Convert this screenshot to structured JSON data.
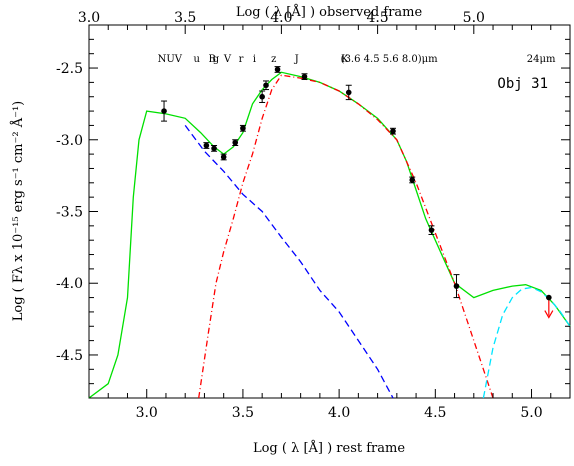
{
  "chart_data": {
    "type": "line",
    "xlabel": "Log ( λ [Å] ) rest frame",
    "x2label": "Log ( λ [Å] ) observed frame",
    "ylabel": "Log ( Fλ x 10⁻¹⁵ erg s⁻¹ cm⁻² Å⁻¹)",
    "xlim": [
      2.7,
      5.2
    ],
    "ylim": [
      -4.8,
      -2.2
    ],
    "x2lim": [
      3.0,
      5.5
    ],
    "x_ticks": [
      "3.0",
      "3.5",
      "4.0",
      "4.5",
      "5.0"
    ],
    "x2_ticks": [
      "3.0",
      "3.5",
      "4.0",
      "4.5",
      "5.0"
    ],
    "y_ticks": [
      "-2.5",
      "-3.0",
      "-3.5",
      "-4.0",
      "-4.5"
    ],
    "annotation": "Obj 31",
    "band_labels": [
      {
        "text": "NUV",
        "x": 3.42
      },
      {
        "text": "u",
        "x": 3.56
      },
      {
        "text": "B",
        "x": 3.64
      },
      {
        "text": "g",
        "x": 3.66
      },
      {
        "text": "V",
        "x": 3.72
      },
      {
        "text": "r",
        "x": 3.79
      },
      {
        "text": "i",
        "x": 3.86
      },
      {
        "text": "z",
        "x": 3.96
      },
      {
        "text": "J",
        "x": 4.08
      },
      {
        "text": "K",
        "x": 4.33
      },
      {
        "text": "(3.6 4.5 5.6  8.0)μm",
        "x": 4.56
      },
      {
        "text": "24μm",
        "x": 5.35
      }
    ],
    "observed_points": {
      "x": [
        3.09,
        3.31,
        3.35,
        3.4,
        3.46,
        3.5,
        3.6,
        3.62,
        3.68,
        3.82,
        4.05,
        4.28,
        4.38,
        4.48,
        4.61
      ],
      "y": [
        -2.8,
        -3.04,
        -3.06,
        -3.12,
        -3.02,
        -2.92,
        -2.7,
        -2.62,
        -2.51,
        -2.56,
        -2.67,
        -2.94,
        -3.28,
        -3.63,
        -4.02
      ],
      "yerr": [
        0.07,
        0.02,
        0.02,
        0.02,
        0.02,
        0.02,
        0.04,
        0.03,
        0.02,
        0.02,
        0.05,
        0.02,
        0.02,
        0.03,
        0.08
      ]
    },
    "upper_limit": {
      "x": 5.09,
      "y": -4.1
    },
    "series": [
      {
        "color": "#00e000",
        "style": "solid",
        "x": [
          2.7,
          2.8,
          2.85,
          2.9,
          2.93,
          2.96,
          3.0,
          3.1,
          3.2,
          3.28,
          3.35,
          3.4,
          3.45,
          3.5,
          3.55,
          3.6,
          3.65,
          3.7,
          3.8,
          3.9,
          4.0,
          4.1,
          4.2,
          4.3,
          4.35,
          4.4,
          4.45,
          4.5,
          4.55,
          4.6,
          4.7,
          4.8,
          4.9,
          4.97,
          5.05,
          5.12,
          5.2
        ],
        "y": [
          -4.8,
          -4.7,
          -4.5,
          -4.1,
          -3.4,
          -3.0,
          -2.8,
          -2.82,
          -2.85,
          -2.95,
          -3.05,
          -3.1,
          -3.05,
          -2.95,
          -2.75,
          -2.65,
          -2.58,
          -2.53,
          -2.56,
          -2.6,
          -2.66,
          -2.75,
          -2.85,
          -3.0,
          -3.15,
          -3.35,
          -3.55,
          -3.7,
          -3.85,
          -4.0,
          -4.1,
          -4.05,
          -4.02,
          -4.01,
          -4.05,
          -4.15,
          -4.3
        ]
      },
      {
        "color": "#0000ff",
        "style": "dashed",
        "x": [
          3.2,
          3.3,
          3.4,
          3.5,
          3.6,
          3.7,
          3.8,
          3.9,
          4.0,
          4.1,
          4.2,
          4.28
        ],
        "y": [
          -2.9,
          -3.08,
          -3.22,
          -3.38,
          -3.5,
          -3.68,
          -3.85,
          -4.05,
          -4.2,
          -4.4,
          -4.6,
          -4.8
        ]
      },
      {
        "color": "#ff0000",
        "style": "dash-dot",
        "x": [
          3.27,
          3.32,
          3.36,
          3.4,
          3.45,
          3.5,
          3.55,
          3.6,
          3.65,
          3.7,
          3.8,
          3.9,
          4.0,
          4.1,
          4.2,
          4.3,
          4.4,
          4.5,
          4.6,
          4.7,
          4.8
        ],
        "y": [
          -4.8,
          -4.35,
          -4.0,
          -3.78,
          -3.55,
          -3.3,
          -3.1,
          -2.85,
          -2.65,
          -2.55,
          -2.57,
          -2.6,
          -2.66,
          -2.75,
          -2.86,
          -3.0,
          -3.3,
          -3.65,
          -4.0,
          -4.4,
          -4.8
        ]
      },
      {
        "color": "#00e5ff",
        "style": "dashed",
        "x": [
          4.75,
          4.8,
          4.85,
          4.9,
          4.95,
          5.0,
          5.05,
          5.1,
          5.15,
          5.2
        ],
        "y": [
          -4.8,
          -4.45,
          -4.22,
          -4.1,
          -4.04,
          -4.03,
          -4.06,
          -4.12,
          -4.2,
          -4.3
        ]
      }
    ]
  }
}
